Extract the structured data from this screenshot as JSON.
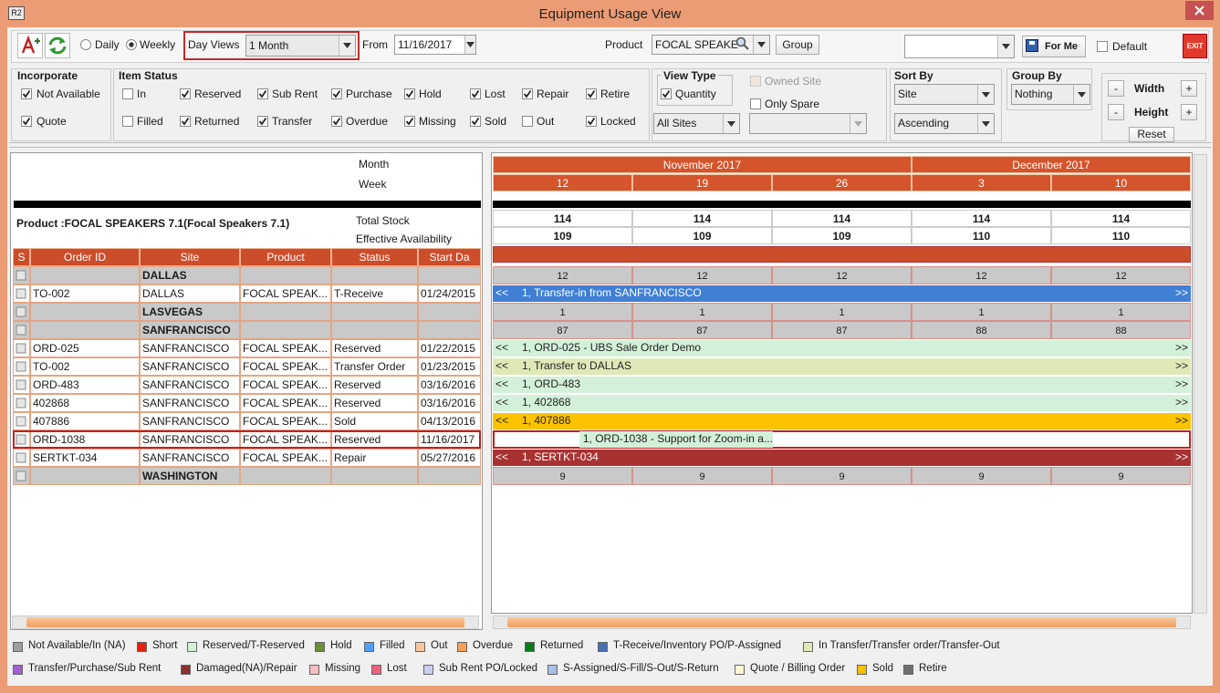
{
  "window": {
    "icon": "R2",
    "title": "Equipment Usage View"
  },
  "toolbar": {
    "daily": "Daily",
    "weekly": "Weekly",
    "mode": "weekly",
    "day_views_label": "Day Views",
    "day_views": "1 Month",
    "from_label": "From",
    "from": "11/16/2017",
    "product_label": "Product",
    "product": "FOCAL SPEAKE",
    "group": "Group",
    "for_me": "For Me",
    "default": {
      "label": "Default",
      "checked": false
    },
    "exit": "EXIT"
  },
  "incorporate": {
    "title": "Incorporate",
    "items": [
      {
        "label": "Not Available",
        "checked": true
      },
      {
        "label": "Quote",
        "checked": true
      }
    ]
  },
  "item_status": {
    "title": "Item Status",
    "items": [
      {
        "label": "In",
        "checked": false
      },
      {
        "label": "Reserved",
        "checked": true
      },
      {
        "label": "Sub Rent",
        "checked": true
      },
      {
        "label": "Purchase",
        "checked": true
      },
      {
        "label": "Hold",
        "checked": true
      },
      {
        "label": "Lost",
        "checked": true
      },
      {
        "label": "Repair",
        "checked": true
      },
      {
        "label": "Retire",
        "checked": true
      },
      {
        "label": "Filled",
        "checked": false
      },
      {
        "label": "Returned",
        "checked": true
      },
      {
        "label": "Transfer",
        "checked": true
      },
      {
        "label": "Overdue",
        "checked": true
      },
      {
        "label": "Missing",
        "checked": true
      },
      {
        "label": "Sold",
        "checked": true
      },
      {
        "label": "Out",
        "checked": false
      },
      {
        "label": "Locked",
        "checked": true
      }
    ]
  },
  "view_type": {
    "title": "View Type",
    "quantity": {
      "label": "Quantity",
      "checked": true
    },
    "sites": "All Sites"
  },
  "site_options": {
    "owned_site": {
      "label": "Owned Site",
      "checked": false
    },
    "only_spare": {
      "label": "Only Spare",
      "checked": false
    }
  },
  "sort_by": {
    "title": "Sort By",
    "field": "Site",
    "order": "Ascending"
  },
  "group_by": {
    "title": "Group By",
    "value": "Nothing"
  },
  "size": {
    "minus": "-",
    "plus": "+",
    "width": "Width",
    "height": "Height",
    "reset": "Reset"
  },
  "left": {
    "month_label": "Month",
    "week_label": "Week",
    "product": "Product :FOCAL SPEAKERS 7.1(Focal Speakers 7.1)",
    "total_stock_label": "Total Stock",
    "availability_label": "Effective Availability",
    "columns": [
      "S",
      "Order ID",
      "Site",
      "Product",
      "Status",
      "Start Da"
    ]
  },
  "right": {
    "months": [
      {
        "label": "November 2017",
        "weeks": [
          "12",
          "19",
          "26"
        ]
      },
      {
        "label": "December 2017",
        "weeks": [
          "3",
          "10"
        ]
      }
    ],
    "total_stock": [
      114,
      114,
      114,
      114,
      114
    ],
    "availability": [
      109,
      109,
      109,
      110,
      110
    ],
    "scroll_left": "<<",
    "scroll_right": ">>"
  },
  "rows": [
    {
      "kind": "group",
      "site": "DALLAS",
      "counts": [
        12,
        12,
        12,
        12,
        12
      ]
    },
    {
      "kind": "order",
      "order_id": "TO-002",
      "site": "DALLAS",
      "product": "FOCAL SPEAK...",
      "status": "T-Receive",
      "start": "01/24/2015",
      "bar": {
        "label": "1, Transfer-in from SANFRANCISCO",
        "color": "#3f7fd4",
        "text_color": "#ffffff",
        "arrows": true
      }
    },
    {
      "kind": "group",
      "site": "LASVEGAS",
      "counts": [
        1,
        1,
        1,
        1,
        1
      ]
    },
    {
      "kind": "group",
      "site": "SANFRANCISCO",
      "counts": [
        87,
        87,
        87,
        88,
        88
      ]
    },
    {
      "kind": "order",
      "order_id": "ORD-025",
      "site": "SANFRANCISCO",
      "product": "FOCAL SPEAK...",
      "status": "Reserved",
      "start": "01/22/2015",
      "bar": {
        "label": "1, ORD-025 - UBS Sale Order Demo",
        "color": "#d3f1d8",
        "text_color": "#222222",
        "arrows": true
      }
    },
    {
      "kind": "order",
      "order_id": "TO-002",
      "site": "SANFRANCISCO",
      "product": "FOCAL SPEAK...",
      "status": "Transfer Order",
      "start": "01/23/2015",
      "bar": {
        "label": "1, Transfer to DALLAS",
        "color": "#dfe9b8",
        "text_color": "#222222",
        "arrows": true
      }
    },
    {
      "kind": "order",
      "order_id": "ORD-483",
      "site": "SANFRANCISCO",
      "product": "FOCAL SPEAK...",
      "status": "Reserved",
      "start": "03/16/2016",
      "bar": {
        "label": "1, ORD-483",
        "color": "#d3f1d8",
        "text_color": "#222222",
        "arrows": true
      }
    },
    {
      "kind": "order",
      "order_id": "402868",
      "site": "SANFRANCISCO",
      "product": "FOCAL SPEAK...",
      "status": "Reserved",
      "start": "03/16/2016",
      "bar": {
        "label": "1, 402868",
        "color": "#d3f1d8",
        "text_color": "#222222",
        "arrows": true
      }
    },
    {
      "kind": "order",
      "order_id": "407886",
      "site": "SANFRANCISCO",
      "product": "FOCAL SPEAK...",
      "status": "Sold",
      "start": "04/13/2016",
      "bar": {
        "label": "1, 407886",
        "color": "#fcc300",
        "text_color": "#222222",
        "arrows": true
      }
    },
    {
      "kind": "order",
      "order_id": "ORD-1038",
      "site": "SANFRANCISCO",
      "product": "FOCAL SPEAK...",
      "status": "Reserved",
      "start": "11/16/2017",
      "selected": true,
      "bar": {
        "label": "1, ORD-1038 - Support for Zoom-in a...",
        "color": "#d3f1d8",
        "text_color": "#222222",
        "arrows": false
      }
    },
    {
      "kind": "order",
      "order_id": "SERTKT-034",
      "site": "SANFRANCISCO",
      "product": "FOCAL SPEAK...",
      "status": "Repair",
      "start": "05/27/2016",
      "bar": {
        "label": "1, SERTKT-034",
        "color": "#a83232",
        "text_color": "#ffffff",
        "arrows": true
      }
    },
    {
      "kind": "group",
      "site": "WASHINGTON",
      "counts": [
        9,
        9,
        9,
        9,
        9
      ]
    }
  ],
  "legend": [
    {
      "label": "Not Available/In (NA)",
      "color": "#9e9e9e"
    },
    {
      "label": "Short",
      "color": "#e8200c"
    },
    {
      "label": "Reserved/T-Reserved",
      "color": "#d3f1d8"
    },
    {
      "label": "Hold",
      "color": "#6b8e3a"
    },
    {
      "label": "Filled",
      "color": "#4fa0ff"
    },
    {
      "label": "Out",
      "color": "#f6c8a0"
    },
    {
      "label": "Overdue",
      "color": "#f5a055"
    },
    {
      "label": "Returned",
      "color": "#0a7a1a"
    },
    {
      "label": "T-Receive/Inventory PO/P-Assigned",
      "color": "#4a6fb5"
    },
    {
      "label": "In Transfer/Transfer order/Transfer-Out",
      "color": "#dfe9b8"
    },
    {
      "label": "Transfer/Purchase/Sub Rent",
      "color": "#a060d0"
    },
    {
      "label": "Damaged(NA)/Repair",
      "color": "#8b3030"
    },
    {
      "label": "Missing",
      "color": "#f7bcc4"
    },
    {
      "label": "Lost",
      "color": "#f06080"
    },
    {
      "label": "Sub Rent PO/Locked",
      "color": "#cccdf2"
    },
    {
      "label": "S-Assigned/S-Fill/S-Out/S-Return",
      "color": "#a8c0e8"
    },
    {
      "label": "Quote / Billing Order",
      "color": "#fff8d2"
    },
    {
      "label": "Sold",
      "color": "#f5c000"
    },
    {
      "label": "Retire",
      "color": "#6e6e6e"
    }
  ]
}
